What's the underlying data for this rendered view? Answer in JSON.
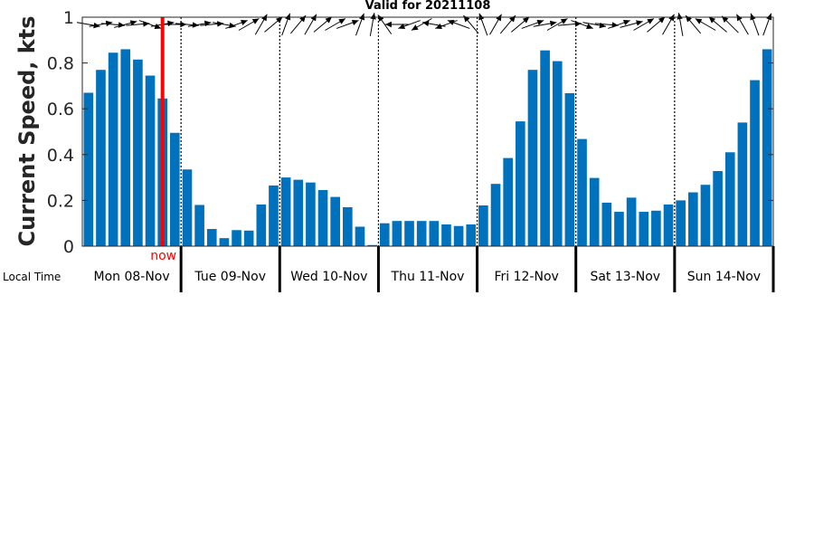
{
  "chart_data": {
    "type": "bar",
    "title": "Valid for 20211108",
    "ylabel": "Current Speed, kts",
    "xlabel": "Local Time",
    "ylim": [
      0,
      1
    ],
    "yticks": [
      "0",
      "0.2",
      "0.4",
      "0.6",
      "0.8",
      "1"
    ],
    "bar_color": "#0072bd",
    "now_color": "#ff0000",
    "now_label": "now",
    "now_index": 6.5,
    "days": [
      "Mon 08-Nov",
      "Tue 09-Nov",
      "Wed 10-Nov",
      "Thu 11-Nov",
      "Fri 12-Nov",
      "Sat 13-Nov",
      "Sun 14-Nov"
    ],
    "bars_per_day": 8,
    "values": [
      0.67,
      0.77,
      0.845,
      0.86,
      0.815,
      0.745,
      0.645,
      0.495,
      0.335,
      0.18,
      0.075,
      0.035,
      0.07,
      0.068,
      0.182,
      0.265,
      0.3,
      0.29,
      0.278,
      0.245,
      0.215,
      0.17,
      0.085,
      0.005,
      0.1,
      0.11,
      0.11,
      0.11,
      0.11,
      0.095,
      0.088,
      0.095,
      0.178,
      0.272,
      0.385,
      0.545,
      0.77,
      0.855,
      0.808,
      0.668,
      0.468,
      0.298,
      0.19,
      0.15,
      0.212,
      0.15,
      0.155,
      0.182,
      0.2,
      0.235,
      0.268,
      0.328,
      0.41,
      0.54,
      0.725,
      0.86
    ],
    "direction_deg": [
      -10,
      10,
      -5,
      15,
      5,
      -20,
      10,
      0,
      -5,
      10,
      5,
      -10,
      20,
      30,
      60,
      40,
      70,
      50,
      60,
      40,
      30,
      20,
      70,
      80,
      125,
      180,
      200,
      210,
      170,
      200,
      160,
      130,
      110,
      60,
      50,
      40,
      20,
      10,
      30,
      5,
      -20,
      -10,
      -5,
      20,
      15,
      30,
      40,
      60,
      100,
      130,
      150,
      140,
      135,
      120,
      110,
      70
    ]
  }
}
